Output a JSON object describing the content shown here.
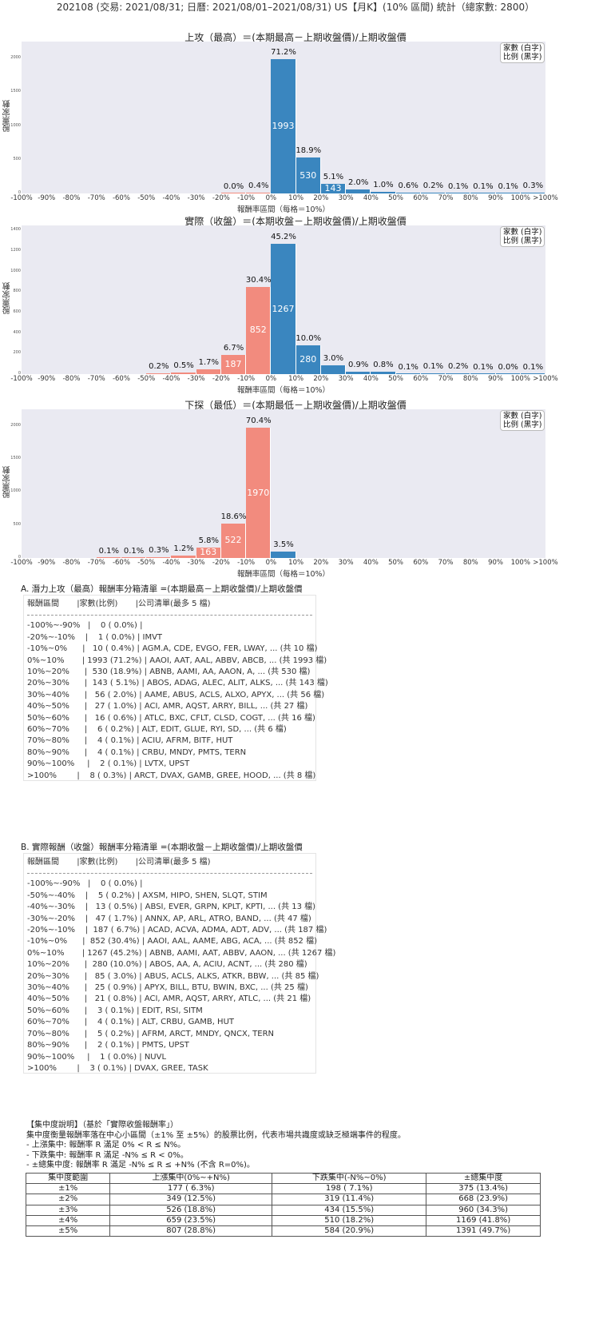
{
  "header": {
    "title": "202108 (交易: 2021/08/31; 日曆: 2021/08/01–2021/08/31) US【月K】(10% 區間) 統計（總家數: 2800）"
  },
  "legend": {
    "line1": "家數 (白字)",
    "line2": "比例 (黑字)"
  },
  "colors": {
    "positive": "#3a86bf",
    "negative": "#f28b7e",
    "plot_bg": "#eaeaf2"
  },
  "chart_data": [
    {
      "type": "bar",
      "title": "上攻（最高）＝(本期最高－上期收盤價)/上期收盤價",
      "xlabel": "報酬率區間（每格＝10%）",
      "ylabel": "股票家數",
      "ylim": [
        0,
        2250
      ],
      "yticks": [
        "0",
        "500",
        "1000",
        "1500",
        "2000"
      ],
      "categories": [
        "-100%~-90%",
        "-90%~-80%",
        "-80%~-70%",
        "-70%~-60%",
        "-60%~-50%",
        "-50%~-40%",
        "-40%~-30%",
        "-30%~-20%",
        "-20%~-10%",
        "-10%~0%",
        "0%~10%",
        "10%~20%",
        "20%~30%",
        "30%~40%",
        "40%~50%",
        "50%~60%",
        "60%~70%",
        "70%~80%",
        "80%~90%",
        "90%~100%",
        ">100%"
      ],
      "values": [
        0,
        0,
        0,
        0,
        0,
        0,
        0,
        0,
        1,
        10,
        1993,
        530,
        143,
        56,
        27,
        16,
        6,
        4,
        4,
        2,
        8
      ],
      "percent_labels": [
        "",
        "",
        "",
        "",
        "",
        "",
        "",
        "",
        "0.0%",
        "0.4%",
        "71.2%",
        "18.9%",
        "5.1%",
        "2.0%",
        "1.0%",
        "0.6%",
        "0.2%",
        "0.1%",
        "0.1%",
        "0.1%",
        "0.3%"
      ],
      "legend": [
        "家數 (白字)",
        "比例 (黑字)"
      ]
    },
    {
      "type": "bar",
      "title": "實際（收盤）＝(本期收盤－上期收盤價)/上期收盤價",
      "xlabel": "報酬率區間（每格＝10%）",
      "ylabel": "股票家數",
      "ylim": [
        0,
        1450
      ],
      "yticks": [
        "0",
        "200",
        "400",
        "600",
        "800",
        "1000",
        "1200",
        "1400"
      ],
      "categories": [
        "-100%~-90%",
        "-90%~-80%",
        "-80%~-70%",
        "-70%~-60%",
        "-60%~-50%",
        "-50%~-40%",
        "-40%~-30%",
        "-30%~-20%",
        "-20%~-10%",
        "-10%~0%",
        "0%~10%",
        "10%~20%",
        "20%~30%",
        "30%~40%",
        "40%~50%",
        "50%~60%",
        "60%~70%",
        "70%~80%",
        "80%~90%",
        "90%~100%",
        ">100%"
      ],
      "values": [
        0,
        0,
        0,
        0,
        0,
        5,
        13,
        47,
        187,
        852,
        1267,
        280,
        85,
        25,
        21,
        3,
        4,
        5,
        2,
        1,
        3
      ],
      "percent_labels": [
        "",
        "",
        "",
        "",
        "",
        "0.2%",
        "0.5%",
        "1.7%",
        "6.7%",
        "30.4%",
        "45.2%",
        "10.0%",
        "3.0%",
        "0.9%",
        "0.8%",
        "0.1%",
        "0.1%",
        "0.2%",
        "0.1%",
        "0.0%",
        "0.1%"
      ],
      "legend": [
        "家數 (白字)",
        "比例 (黑字)"
      ]
    },
    {
      "type": "bar",
      "title": "下探（最低）＝(本期最低－上期收盤價)/上期收盤價",
      "xlabel": "報酬率區間（每格＝10%）",
      "ylabel": "股票家數",
      "ylim": [
        0,
        2250
      ],
      "yticks": [
        "0",
        "500",
        "1000",
        "1500",
        "2000"
      ],
      "categories": [
        "-100%~-90%",
        "-90%~-80%",
        "-80%~-70%",
        "-70%~-60%",
        "-60%~-50%",
        "-50%~-40%",
        "-40%~-30%",
        "-30%~-20%",
        "-20%~-10%",
        "-10%~0%",
        "0%~10%",
        "10%~20%",
        "20%~30%",
        "30%~40%",
        "40%~50%",
        "50%~60%",
        "60%~70%",
        "70%~80%",
        "80%~90%",
        "90%~100%",
        ">100%"
      ],
      "values": [
        0,
        0,
        0,
        3,
        3,
        8,
        33,
        163,
        522,
        1970,
        97,
        0,
        0,
        0,
        0,
        0,
        0,
        0,
        0,
        0,
        0
      ],
      "percent_labels": [
        "",
        "",
        "",
        "0.1%",
        "0.1%",
        "0.3%",
        "1.2%",
        "5.8%",
        "18.6%",
        "70.4%",
        "3.5%",
        "",
        "",
        "",
        "",
        "",
        "",
        "",
        "",
        "",
        ""
      ],
      "legend": [
        "家數 (白字)",
        "比例 (黑字)"
      ]
    }
  ],
  "xticks": [
    "-100%",
    "-90%",
    "-80%",
    "-70%",
    "-60%",
    "-50%",
    "-40%",
    "-30%",
    "-20%",
    "-10%",
    "0%",
    "10%",
    "20%",
    "30%",
    "40%",
    "50%",
    "60%",
    "70%",
    "80%",
    "90%",
    "100%",
    ">100%"
  ],
  "list_a": {
    "title": "A. 潛力上攻（最高）報酬率分箱清單 =(本期最高－上期收盤價)/上期收盤價",
    "header": "報酬區間       |家數(比例)       |公司清單(最多 5 檔)",
    "rows": [
      "-100%~-90%   |    0 ( 0.0%) |",
      "-20%~-10%    |    1 ( 0.0%) | IMVT",
      "-10%~0%      |   10 ( 0.4%) | AGM.A, CDE, EVGO, FER, LWAY, ... (共 10 檔)",
      "0%~10%       | 1993 (71.2%) | AAOI, AAT, AAL, ABBV, ABCB, ... (共 1993 檔)",
      "10%~20%      |  530 (18.9%) | ABNB, AAMI, AA, AAON, A, ... (共 530 檔)",
      "20%~30%      |  143 ( 5.1%) | ABOS, ADAG, ALEC, ALIT, ALKS, ... (共 143 檔)",
      "30%~40%      |   56 ( 2.0%) | AAME, ABUS, ACLS, ALXO, APYX, ... (共 56 檔)",
      "40%~50%      |   27 ( 1.0%) | ACI, AMR, AQST, ARRY, BILL, ... (共 27 檔)",
      "50%~60%      |   16 ( 0.6%) | ATLC, BXC, CFLT, CLSD, COGT, ... (共 16 檔)",
      "60%~70%      |    6 ( 0.2%) | ALT, EDIT, GLUE, RYI, SD, ... (共 6 檔)",
      "70%~80%      |    4 ( 0.1%) | ACIU, AFRM, BITF, HUT",
      "80%~90%      |    4 ( 0.1%) | CRBU, MNDY, PMTS, TERN",
      "90%~100%     |    2 ( 0.1%) | LVTX, UPST",
      ">100%        |    8 ( 0.3%) | ARCT, DVAX, GAMB, GREE, HOOD, ... (共 8 檔)"
    ]
  },
  "list_b": {
    "title": "B. 實際報酬（收盤）報酬率分箱清單 =(本期收盤－上期收盤價)/上期收盤價",
    "header": "報酬區間       |家數(比例)       |公司清單(最多 5 檔)",
    "rows": [
      "-100%~-90%   |    0 ( 0.0%) |",
      "-50%~-40%    |    5 ( 0.2%) | AXSM, HIPO, SHEN, SLQT, STIM",
      "-40%~-30%    |   13 ( 0.5%) | ABSI, EVER, GRPN, KPLT, KPTI, ... (共 13 檔)",
      "-30%~-20%    |   47 ( 1.7%) | ANNX, AP, ARL, ATRO, BAND, ... (共 47 檔)",
      "-20%~-10%    |  187 ( 6.7%) | ACAD, ACVA, ADMA, ADT, ADV, ... (共 187 檔)",
      "-10%~0%      |  852 (30.4%) | AAOI, AAL, AAME, ABG, ACA, ... (共 852 檔)",
      "0%~10%       | 1267 (45.2%) | ABNB, AAMI, AAT, ABBV, AAON, ... (共 1267 檔)",
      "10%~20%      |  280 (10.0%) | ABOS, AA, A, ACIU, ACNT, ... (共 280 檔)",
      "20%~30%      |   85 ( 3.0%) | ABUS, ACLS, ALKS, ATKR, BBW, ... (共 85 檔)",
      "30%~40%      |   25 ( 0.9%) | APYX, BILL, BTU, BWIN, BXC, ... (共 25 檔)",
      "40%~50%      |   21 ( 0.8%) | ACI, AMR, AQST, ARRY, ATLC, ... (共 21 檔)",
      "50%~60%      |    3 ( 0.1%) | EDIT, RSI, SITM",
      "60%~70%      |    4 ( 0.1%) | ALT, CRBU, GAMB, HUT",
      "70%~80%      |    5 ( 0.2%) | AFRM, ARCT, MNDY, QNCX, TERN",
      "80%~90%      |    2 ( 0.1%) | PMTS, UPST",
      "90%~100%     |    1 ( 0.0%) | NUVL",
      ">100%        |    3 ( 0.1%) | DVAX, GREE, TASK"
    ]
  },
  "concentration": {
    "lines": [
      "【集中度說明】（基於「實際收盤報酬率」）",
      "集中度衡量報酬率落在中心小區間（±1% 至 ±5%）的股票比例，代表市場共識度或缺乏極端事件的程度。",
      " - 上漲集中: 報酬率 R 滿足 0% < R ≤ N%。",
      " - 下跌集中: 報酬率 R 滿足 -N% ≤ R < 0%。",
      " - ±總集中度: 報酬率 R 滿足 -N% ≤ R ≤ +N% (不含 R=0%)。"
    ],
    "table": {
      "headers": [
        "集中度範圍",
        "上漲集中(0%~+N%)",
        "下跌集中(-N%~0%)",
        "±總集中度"
      ],
      "rows": [
        [
          "±1%",
          "177 ( 6.3%)",
          "198 ( 7.1%)",
          "375 (13.4%)"
        ],
        [
          "±2%",
          "349 (12.5%)",
          "319 (11.4%)",
          "668 (23.9%)"
        ],
        [
          "±3%",
          "526 (18.8%)",
          "434 (15.5%)",
          "960 (34.3%)"
        ],
        [
          "±4%",
          "659 (23.5%)",
          "510 (18.2%)",
          "1169 (41.8%)"
        ],
        [
          "±5%",
          "807 (28.8%)",
          "584 (20.9%)",
          "1391 (49.7%)"
        ]
      ]
    }
  }
}
